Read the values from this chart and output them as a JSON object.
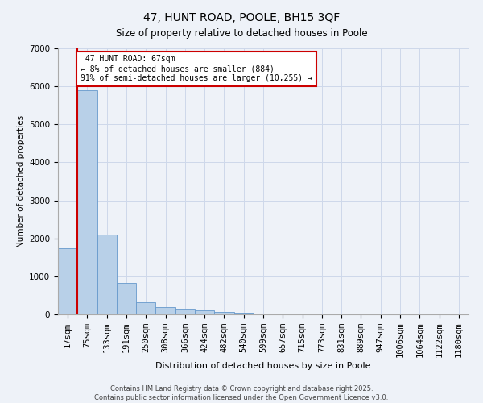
{
  "title_line1": "47, HUNT ROAD, POOLE, BH15 3QF",
  "title_line2": "Size of property relative to detached houses in Poole",
  "xlabel": "Distribution of detached houses by size in Poole",
  "ylabel": "Number of detached properties",
  "bar_color": "#b8d0e8",
  "bar_edge_color": "#6699cc",
  "annotation_box_color": "#cc0000",
  "property_line_color": "#cc0000",
  "background_color": "#eef2f8",
  "categories": [
    "17sqm",
    "75sqm",
    "133sqm",
    "191sqm",
    "250sqm",
    "308sqm",
    "366sqm",
    "424sqm",
    "482sqm",
    "540sqm",
    "599sqm",
    "657sqm",
    "715sqm",
    "773sqm",
    "831sqm",
    "889sqm",
    "947sqm",
    "1006sqm",
    "1064sqm",
    "1122sqm",
    "1180sqm"
  ],
  "values": [
    1750,
    5900,
    2100,
    820,
    310,
    195,
    155,
    110,
    70,
    45,
    28,
    15,
    8,
    5,
    3,
    2,
    1,
    1,
    0,
    0,
    0
  ],
  "property_label": "47 HUNT ROAD: 67sqm",
  "pct_smaller": "8% of detached houses are smaller (884)",
  "pct_larger": "91% of semi-detached houses are larger (10,255)",
  "ylim": [
    0,
    7000
  ],
  "footer_line1": "Contains HM Land Registry data © Crown copyright and database right 2025.",
  "footer_line2": "Contains public sector information licensed under the Open Government Licence v3.0.",
  "grid_color": "#cdd8ea"
}
